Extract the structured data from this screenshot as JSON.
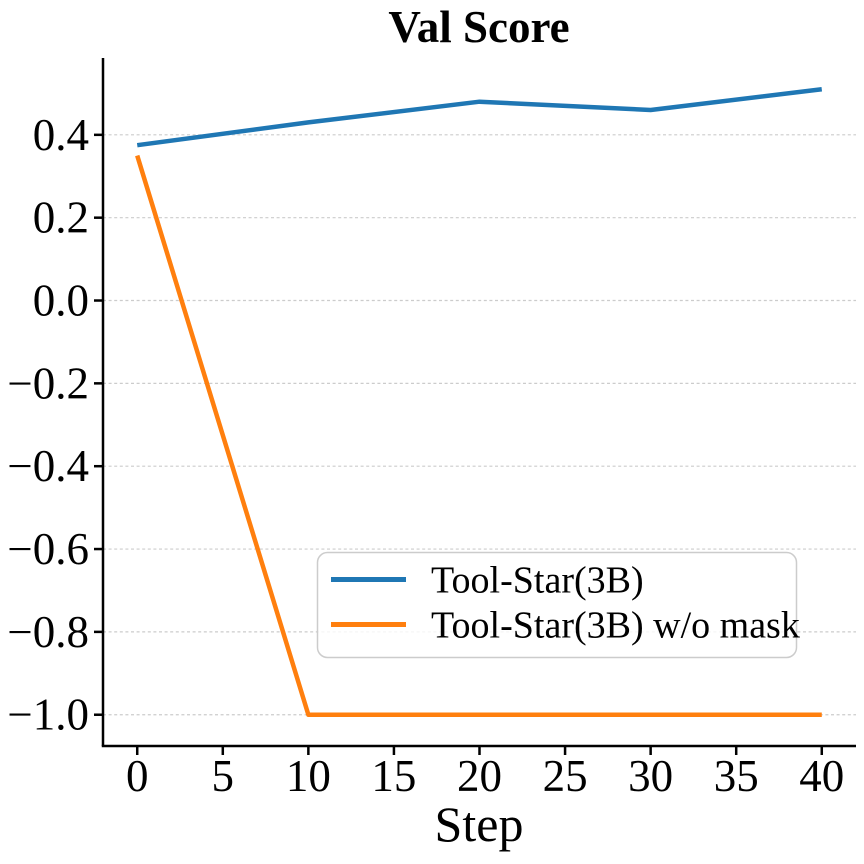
{
  "chart_data": {
    "type": "line",
    "title": "Val Score",
    "xlabel": "Step",
    "ylabel": "",
    "x": [
      0,
      10,
      20,
      30,
      40
    ],
    "series": [
      {
        "name": "Tool-Star(3B)",
        "color": "#1f77b4",
        "values": [
          0.375,
          0.43,
          0.48,
          0.46,
          0.51
        ]
      },
      {
        "name": "Tool-Star(3B) w/o mask",
        "color": "#ff7f0e",
        "values": [
          0.35,
          -1.0,
          -1.0,
          -1.0,
          -1.0
        ]
      }
    ],
    "xlim": [
      -2,
      42
    ],
    "ylim": [
      -1.0755,
      0.5855
    ],
    "xticks": [
      0,
      5,
      10,
      15,
      20,
      25,
      30,
      35,
      40
    ],
    "yticks": [
      0.4,
      0.2,
      0.0,
      -0.2,
      -0.4,
      -0.6,
      -0.8,
      -1.0
    ],
    "ytick_labels": [
      "0.4",
      "0.2",
      "0.0",
      "−0.2",
      "−0.4",
      "−0.6",
      "−0.8",
      "−1.0"
    ],
    "xtick_labels": [
      "0",
      "5",
      "10",
      "15",
      "20",
      "25",
      "30",
      "35",
      "40"
    ],
    "grid": "horizontal",
    "grid_linestyle": "dashed",
    "legend_position": "lower-center-inside",
    "colors": {
      "background": "#ffffff",
      "grid": "#cccccc",
      "axis": "#000000",
      "text": "#000000",
      "legend_border": "#cccccc",
      "legend_fill": "#ffffff"
    }
  }
}
